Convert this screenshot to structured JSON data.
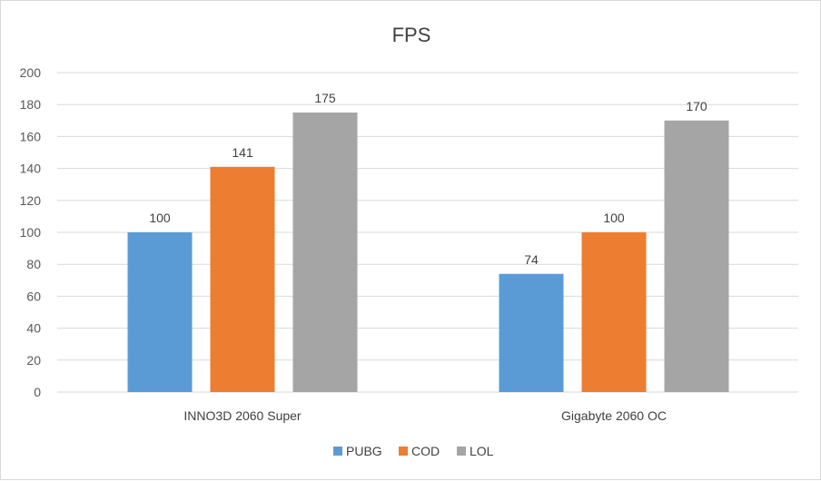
{
  "chart_data": {
    "type": "bar",
    "title": "FPS",
    "categories": [
      "INNO3D 2060 Super",
      "Gigabyte 2060 OC"
    ],
    "series": [
      {
        "name": "PUBG",
        "values": [
          100,
          74
        ],
        "color": "#5b9bd5"
      },
      {
        "name": "COD",
        "values": [
          141,
          100
        ],
        "color": "#ed7d31"
      },
      {
        "name": "LOL",
        "values": [
          175,
          170
        ],
        "color": "#a5a5a5"
      }
    ],
    "ylim": [
      0,
      200
    ],
    "ytick_step": 20,
    "yticks": [
      "0",
      "20",
      "40",
      "60",
      "80",
      "100",
      "120",
      "140",
      "160",
      "180",
      "200"
    ],
    "xlabel": "",
    "ylabel": "",
    "grid": true,
    "legend_position": "bottom"
  }
}
